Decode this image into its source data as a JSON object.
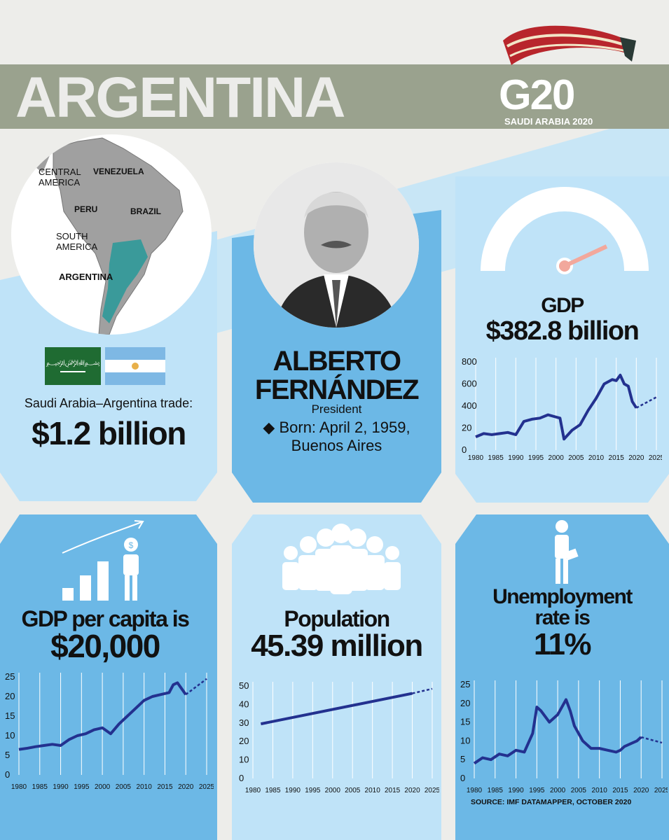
{
  "header": {
    "country": "ARGENTINA",
    "logo_text": "G20",
    "logo_subtitle": "SAUDI ARABIA 2020"
  },
  "map": {
    "labels": [
      "CENTRAL AMERICA",
      "VENEZUELA",
      "PERU",
      "BRAZIL",
      "SOUTH AMERICA",
      "ARGENTINA"
    ]
  },
  "trade": {
    "label": "Saudi Arabia–Argentina trade:",
    "value": "$1.2 billion"
  },
  "leader": {
    "name_line1": "ALBERTO",
    "name_line2": "FERNÁNDEZ",
    "title": "President",
    "born_line1": "◆ Born: April 2, 1959,",
    "born_line2": "Buenos Aires"
  },
  "gdp": {
    "label": "GDP",
    "value": "$382.8 billion"
  },
  "gdp_per_capita": {
    "label": "GDP per capita is",
    "value": "$20,000"
  },
  "population": {
    "label": "Population",
    "value": "45.39 million"
  },
  "unemployment": {
    "label_line1": "Unemployment",
    "label_line2": "rate is",
    "value": "11%"
  },
  "source": "SOURCE: IMF DATAMAPPER, OCTOBER 2020",
  "colors": {
    "background": "#ededea",
    "banner": "#9aa28e",
    "light_blue": "#b8e0f7",
    "mid_blue": "#6cb8e6",
    "line": "#23318f",
    "map_highlight": "#3a9a9a"
  },
  "chart_data": [
    {
      "type": "line",
      "title": "GDP",
      "x": [
        1980,
        1982,
        1984,
        1986,
        1988,
        1990,
        1992,
        1994,
        1996,
        1998,
        2000,
        2001,
        2002,
        2004,
        2006,
        2008,
        2010,
        2012,
        2014,
        2015,
        2016,
        2017,
        2018,
        2019,
        2020,
        2025
      ],
      "y": [
        120,
        150,
        140,
        150,
        160,
        140,
        260,
        280,
        290,
        320,
        300,
        290,
        100,
        180,
        230,
        360,
        470,
        600,
        640,
        630,
        680,
        600,
        580,
        440,
        383,
        480
      ],
      "projection_from": 2020,
      "yticks": [
        0,
        20,
        400,
        600,
        800
      ],
      "xticks": [
        1980,
        1985,
        1990,
        1995,
        2000,
        2005,
        2010,
        2015,
        2020,
        2025
      ]
    },
    {
      "type": "line",
      "title": "GDP per capita",
      "x": [
        1980,
        1982,
        1984,
        1986,
        1988,
        1990,
        1992,
        1994,
        1996,
        1998,
        2000,
        2002,
        2004,
        2006,
        2008,
        2010,
        2012,
        2014,
        2016,
        2017,
        2018,
        2019,
        2020,
        2025
      ],
      "y": [
        6.5,
        6.8,
        7.2,
        7.5,
        7.8,
        7.5,
        9,
        10,
        10.5,
        11.5,
        12,
        10.5,
        13,
        15,
        17,
        19,
        20,
        20.5,
        21,
        23,
        23.5,
        22,
        20.5,
        24.5
      ],
      "projection_from": 2020,
      "yticks": [
        0,
        5,
        10,
        15,
        20,
        25
      ],
      "xticks": [
        1980,
        1985,
        1990,
        1995,
        2000,
        2005,
        2010,
        2015,
        2020,
        2025
      ]
    },
    {
      "type": "line",
      "title": "Population",
      "x": [
        1982,
        2020,
        2025
      ],
      "y": [
        29.5,
        46,
        48.5
      ],
      "projection_from": 2020,
      "yticks": [
        0,
        10,
        20,
        30,
        40,
        50
      ],
      "xticks": [
        1980,
        1985,
        1990,
        1995,
        2000,
        2005,
        2010,
        2015,
        2020,
        2025
      ]
    },
    {
      "type": "line",
      "title": "Unemployment rate",
      "x": [
        1980,
        1982,
        1984,
        1986,
        1988,
        1990,
        1992,
        1994,
        1995,
        1996,
        1998,
        2000,
        2001,
        2002,
        2003,
        2004,
        2006,
        2008,
        2010,
        2012,
        2014,
        2015,
        2016,
        2018,
        2019,
        2020,
        2025
      ],
      "y": [
        4,
        5.5,
        5,
        6.5,
        6,
        7.5,
        7,
        12,
        19,
        18,
        15,
        17,
        19,
        21,
        18,
        14,
        10,
        8,
        8,
        7.5,
        7,
        7.5,
        8.5,
        9.5,
        10,
        11,
        9.5
      ],
      "projection_from": 2020,
      "yticks": [
        0,
        5,
        10,
        15,
        20,
        25
      ],
      "xticks": [
        1980,
        1985,
        1990,
        1995,
        2000,
        2005,
        2010,
        2015,
        2020,
        2025
      ]
    }
  ]
}
